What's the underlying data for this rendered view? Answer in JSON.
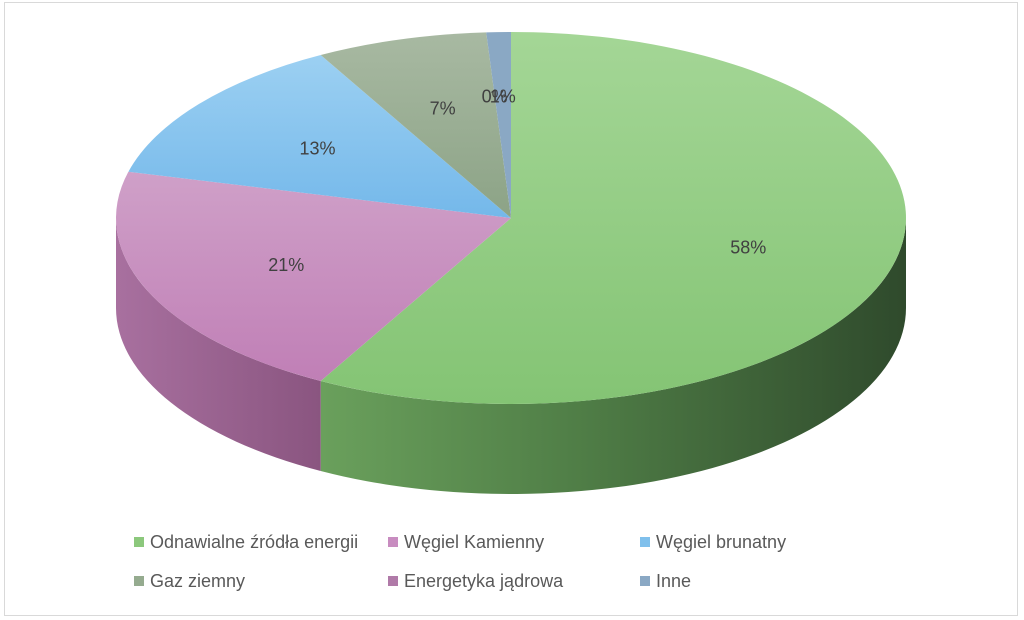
{
  "chart_data": {
    "type": "pie",
    "style": "3d",
    "categories": [
      "Odnawialne źródła energii",
      "Węgiel Kamienny",
      "Węgiel brunatny",
      "Gaz ziemny",
      "Energetyka jądrowa",
      "Inne"
    ],
    "values": [
      58,
      21,
      13,
      7,
      0,
      1
    ],
    "labels": [
      "58%",
      "21%",
      "13%",
      "7%",
      "0%",
      "1%"
    ],
    "colors": [
      "#8cc87c",
      "#c88cc0",
      "#80c0ec",
      "#95ab8f",
      "#b07aa8",
      "#8aa8c4"
    ],
    "legend_position": "bottom"
  }
}
